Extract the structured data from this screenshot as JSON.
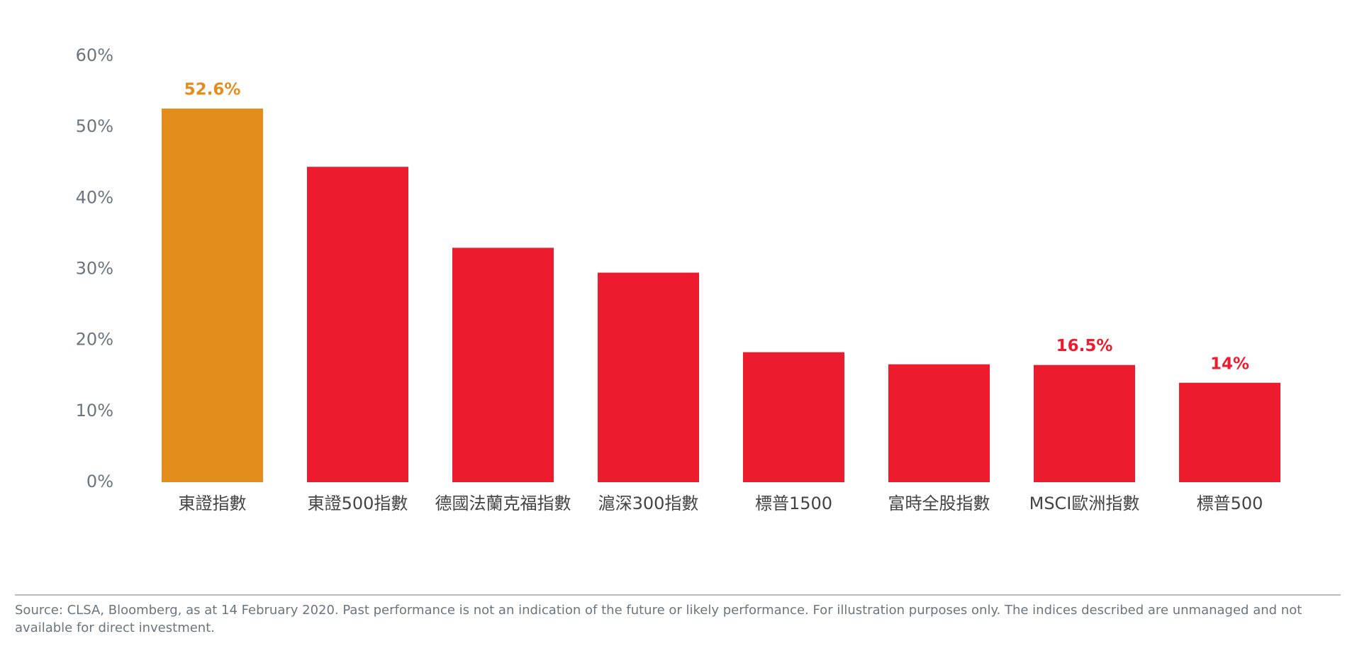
{
  "chart_data": {
    "type": "bar",
    "categories": [
      "東證指數",
      "東證500指數",
      "德國法蘭克福指數",
      "滬深300指數",
      "標普1500",
      "富時全股指數",
      "MSCI歐洲指數",
      "標普500"
    ],
    "values": [
      52.6,
      44.4,
      33.0,
      29.5,
      18.3,
      16.6,
      16.5,
      14
    ],
    "value_labels": [
      "52.6%",
      null,
      null,
      null,
      null,
      null,
      "16.5%",
      "14%"
    ],
    "colors": [
      "#e38e1c",
      "#ec1c2e",
      "#ec1c2e",
      "#ec1c2e",
      "#ec1c2e",
      "#ec1c2e",
      "#ec1c2e",
      "#ec1c2e"
    ],
    "ylim": [
      0,
      60
    ],
    "yticks": [
      {
        "value": 0,
        "label": "0%"
      },
      {
        "value": 10,
        "label": "10%"
      },
      {
        "value": 20,
        "label": "20%"
      },
      {
        "value": 30,
        "label": "30%"
      },
      {
        "value": 40,
        "label": "40%"
      },
      {
        "value": 50,
        "label": "50%"
      },
      {
        "value": 60,
        "label": "60%"
      }
    ],
    "grid": false,
    "source": "Source: CLSA, Bloomberg, as at 14 February 2020. Past performance is not an indication of the future or likely performance. For illustration purposes only. The indices described are unmanaged and not available for direct investment."
  }
}
